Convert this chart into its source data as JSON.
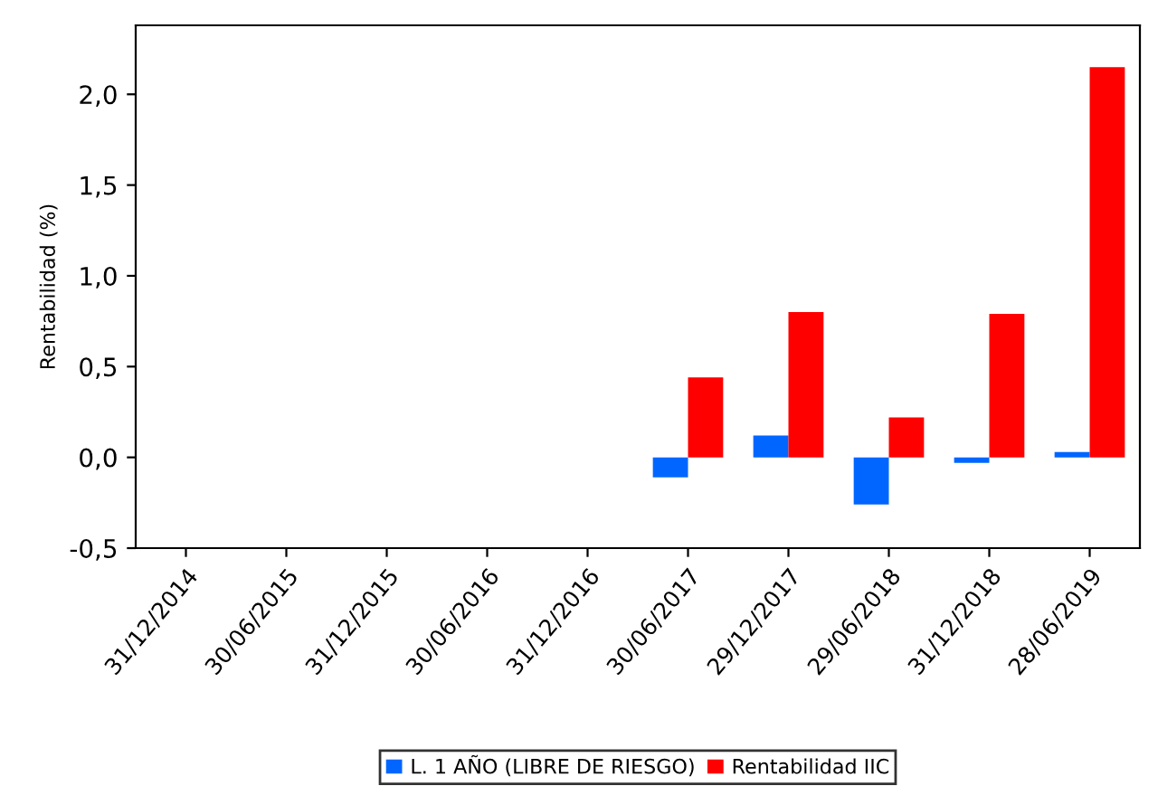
{
  "chart_data": {
    "type": "bar",
    "ylabel": "Rentabilidad (%)",
    "categories": [
      "31/12/2014",
      "30/06/2015",
      "31/12/2015",
      "30/06/2016",
      "31/12/2016",
      "30/06/2017",
      "29/12/2017",
      "29/06/2018",
      "31/12/2018",
      "28/06/2019"
    ],
    "series": [
      {
        "name": "L. 1 AÑO (LIBRE DE RIESGO)",
        "color": "#0066ff",
        "values": [
          null,
          null,
          null,
          null,
          null,
          -0.11,
          0.12,
          -0.26,
          -0.03,
          0.03
        ]
      },
      {
        "name": "Rentabilidad IIC",
        "color": "#ff0000",
        "values": [
          null,
          null,
          null,
          null,
          null,
          0.44,
          0.8,
          0.22,
          0.79,
          2.15
        ]
      }
    ],
    "ylim": [
      -0.5,
      2.38
    ],
    "yticks": [
      {
        "value": -0.5,
        "label": "-0,5"
      },
      {
        "value": 0,
        "label": "0,0"
      },
      {
        "value": 0.5,
        "label": "0,5"
      },
      {
        "value": 1,
        "label": "1,0"
      },
      {
        "value": 1.5,
        "label": "1,5"
      },
      {
        "value": 2,
        "label": "2,0"
      }
    ],
    "grid": false,
    "legend": "bottom"
  }
}
